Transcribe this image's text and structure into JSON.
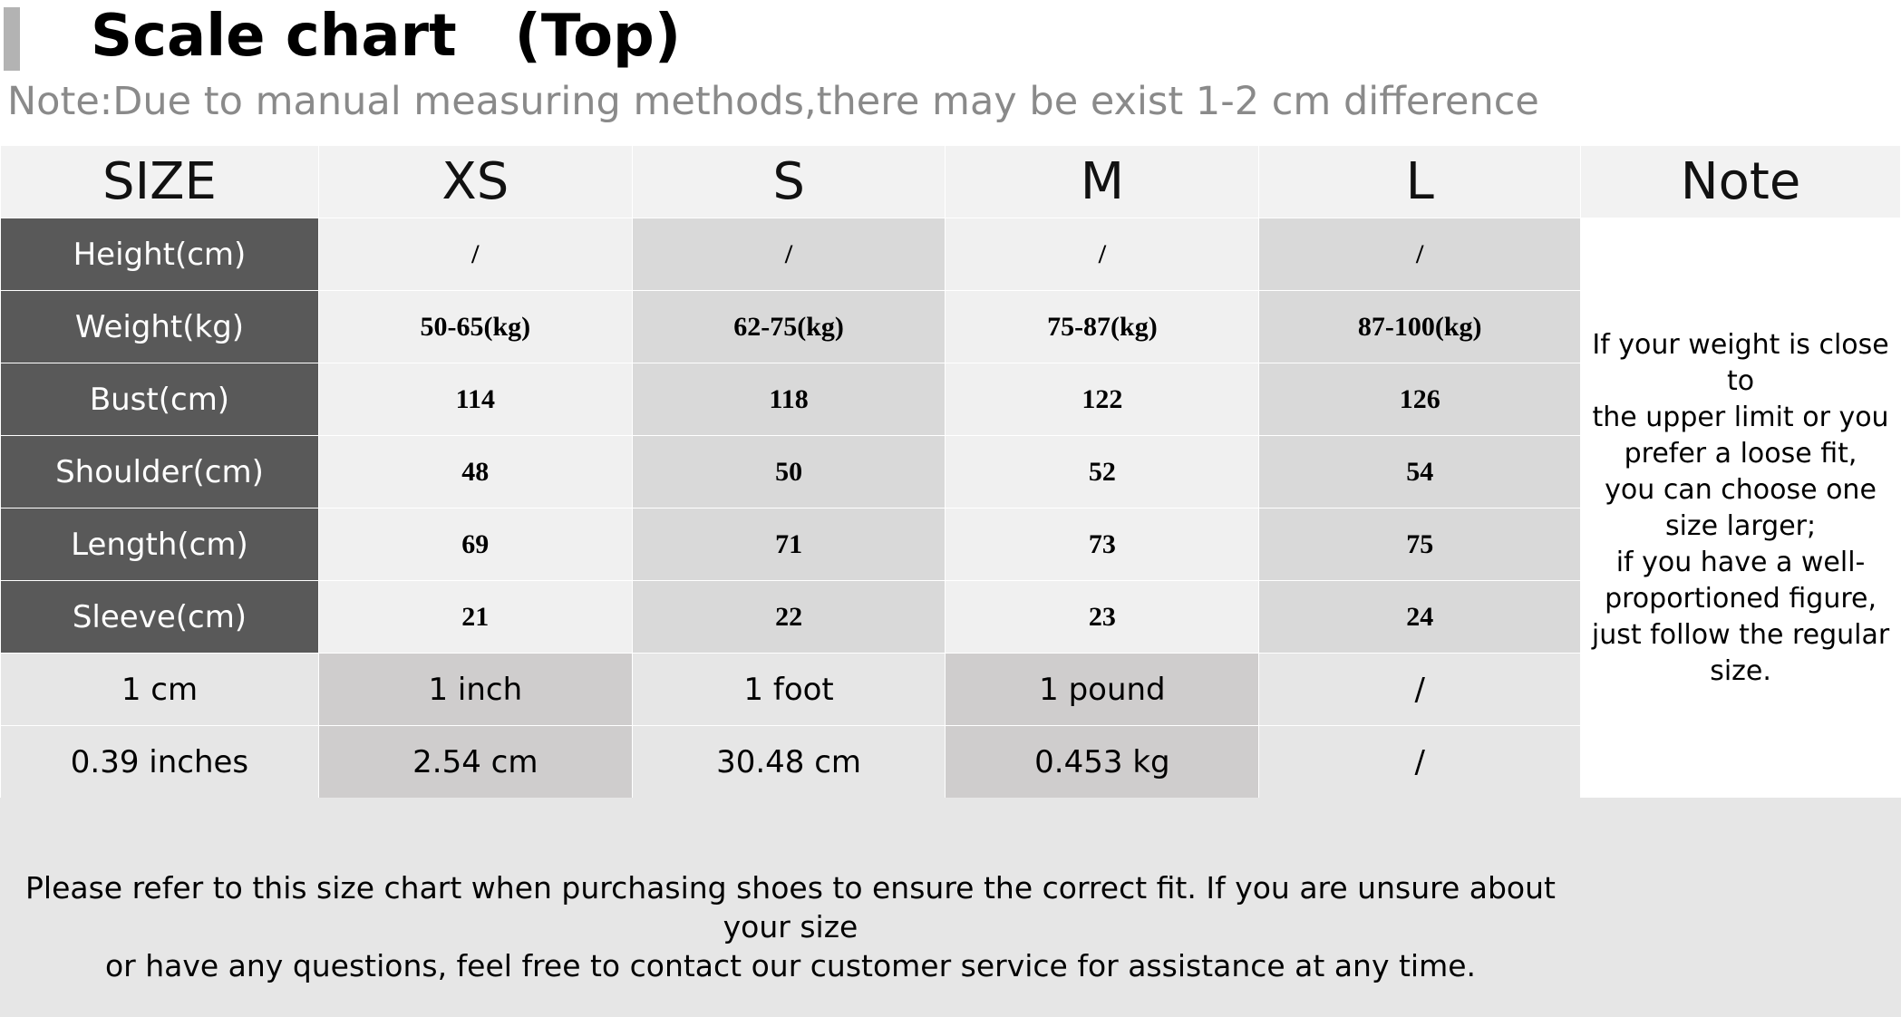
{
  "title": "Scale chart　(Top)",
  "note_line": "Note:Due to manual measuring methods,there may be exist 1-2 cm difference",
  "table": {
    "header": [
      "SIZE",
      "XS",
      "S",
      "M",
      "L",
      "Note"
    ],
    "rows": [
      {
        "label": "Height(cm)",
        "values": [
          "/",
          "/",
          "/",
          "/"
        ]
      },
      {
        "label": "Weight(kg)",
        "values": [
          "50-65(kg)",
          "62-75(kg)",
          "75-87(kg)",
          "87-100(kg)"
        ]
      },
      {
        "label": "Bust(cm)",
        "values": [
          "114",
          "118",
          "122",
          "126"
        ]
      },
      {
        "label": "Shoulder(cm)",
        "values": [
          "48",
          "50",
          "52",
          "54"
        ]
      },
      {
        "label": "Length(cm)",
        "values": [
          "69",
          "71",
          "73",
          "75"
        ]
      },
      {
        "label": "Sleeve(cm)",
        "values": [
          "21",
          "22",
          "23",
          "24"
        ]
      }
    ],
    "conversions": [
      [
        "1 cm",
        "1 inch",
        "1 foot",
        "1 pound",
        "/"
      ],
      [
        "0.39 inches",
        "2.54 cm",
        "30.48 cm",
        "0.453 kg",
        "/"
      ]
    ],
    "note_lines": [
      "If your weight is close to",
      "the upper limit or you",
      "prefer a loose fit,",
      "you can choose one",
      "size larger;",
      "if you have a well-",
      "proportioned figure,",
      "just follow the regular",
      "size."
    ]
  },
  "footer": {
    "line1": "Please refer to this size chart when purchasing shoes to ensure the correct fit. If you are unsure about your size",
    "line2": "or have any questions, feel free to contact our customer service for assistance at any time."
  },
  "colors": {
    "label_bg": "#595959",
    "header_bg": "#f2f2f2",
    "light_cell": "#f0f0f0",
    "mid_cell": "#d9d9d9",
    "footer_bg": "#e6e6e6",
    "note_gray": "#8a8a8a"
  }
}
